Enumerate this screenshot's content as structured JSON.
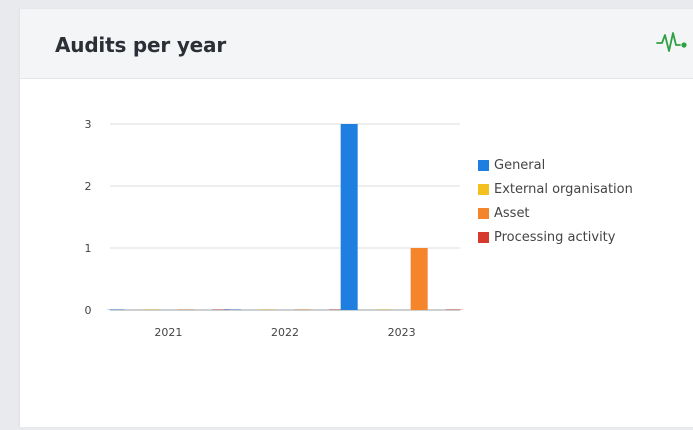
{
  "card": {
    "title": "Audits per year",
    "header_icon": "activity-pulse-icon",
    "accent_color": "#2ea043"
  },
  "chart_data": {
    "type": "bar",
    "categories": [
      "2021",
      "2022",
      "2023"
    ],
    "series": [
      {
        "name": "General",
        "color": "#1f7fe0",
        "values": [
          0,
          0,
          3
        ]
      },
      {
        "name": "External organisation",
        "color": "#f4c020",
        "values": [
          0,
          0,
          0
        ]
      },
      {
        "name": "Asset",
        "color": "#f5852b",
        "values": [
          0,
          0,
          1
        ]
      },
      {
        "name": "Processing activity",
        "color": "#d63a2f",
        "values": [
          0,
          0,
          0
        ]
      }
    ],
    "title": "",
    "xlabel": "",
    "ylabel": "",
    "ylim": [
      0,
      3
    ],
    "yticks": [
      "0",
      "1",
      "2",
      "3"
    ],
    "grid": true,
    "legend_position": "right"
  }
}
